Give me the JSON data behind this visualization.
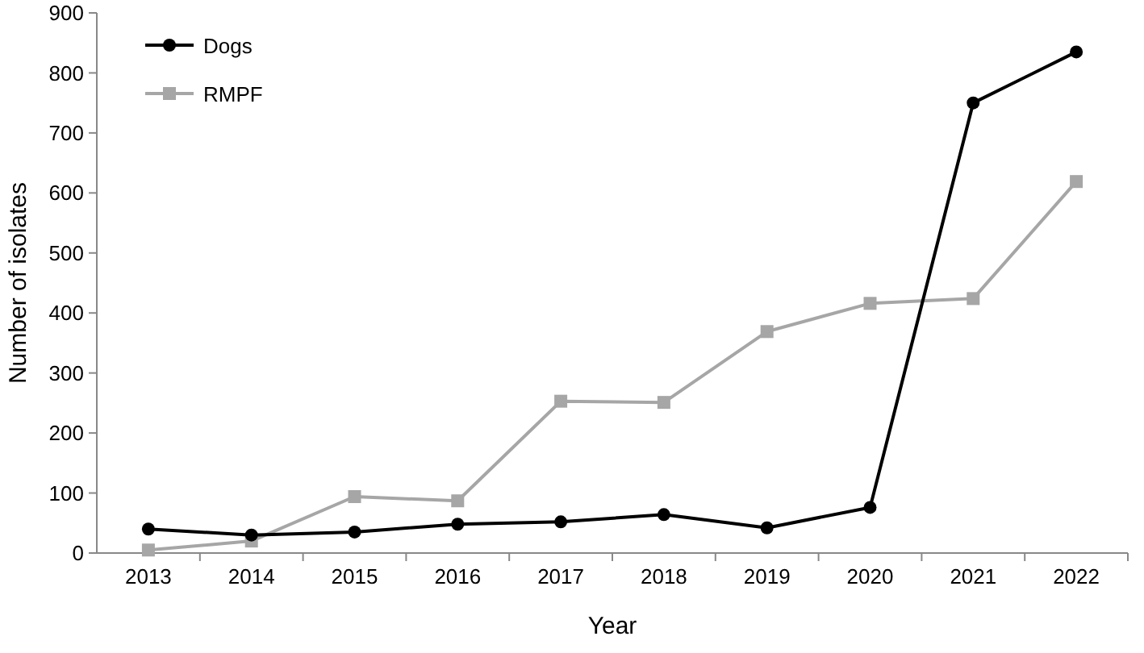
{
  "chart_data": {
    "type": "line",
    "xlabel": "Year",
    "ylabel": "Number of isolates",
    "categories": [
      "2013",
      "2014",
      "2015",
      "2016",
      "2017",
      "2018",
      "2019",
      "2020",
      "2021",
      "2022"
    ],
    "series": [
      {
        "name": "Dogs",
        "color": "#000000",
        "marker": "circle",
        "values": [
          40,
          30,
          35,
          48,
          52,
          64,
          42,
          76,
          750,
          835
        ]
      },
      {
        "name": "RMPF",
        "color": "#a6a6a6",
        "marker": "square",
        "values": [
          5,
          20,
          94,
          87,
          253,
          251,
          369,
          416,
          424,
          619
        ]
      }
    ],
    "ylim": [
      0,
      900
    ],
    "yticks": [
      0,
      100,
      200,
      300,
      400,
      500,
      600,
      700,
      800,
      900
    ],
    "grid": false,
    "legend": "top left",
    "line_style": "solid"
  }
}
